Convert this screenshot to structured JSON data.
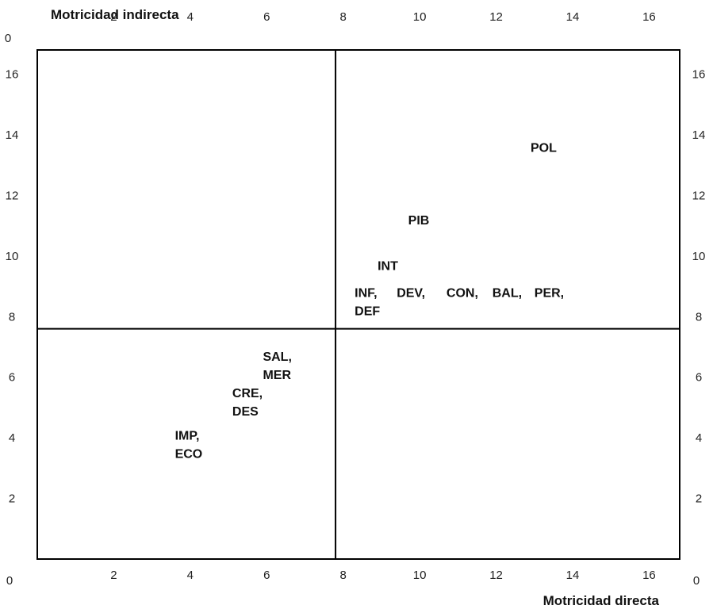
{
  "chart_data": {
    "type": "scatter",
    "title": "",
    "xlabel": "Motricidad directa",
    "ylabel": "Motricidad indirecta",
    "xlim": [
      0,
      16.8
    ],
    "ylim": [
      0,
      16.8
    ],
    "x_ticks": [
      2,
      4,
      6,
      8,
      10,
      12,
      14,
      16
    ],
    "y_ticks": [
      2,
      4,
      6,
      8,
      10,
      12,
      14,
      16
    ],
    "origin_label": "0",
    "divider_x": 7.8,
    "divider_y": 7.6,
    "grid": false,
    "points": [
      {
        "label": "POL",
        "x": 12.9,
        "y": 13.6
      },
      {
        "label": "PIB",
        "x": 9.7,
        "y": 11.2
      },
      {
        "label": "INT",
        "x": 8.9,
        "y": 9.7
      },
      {
        "label": "INF,",
        "x": 8.3,
        "y": 8.8
      },
      {
        "label": "DEV,",
        "x": 9.4,
        "y": 8.8
      },
      {
        "label": "CON,",
        "x": 10.7,
        "y": 8.8
      },
      {
        "label": "BAL,",
        "x": 11.9,
        "y": 8.8
      },
      {
        "label": "PER,",
        "x": 13.0,
        "y": 8.8
      },
      {
        "label": "DEF",
        "x": 8.3,
        "y": 8.2
      },
      {
        "label": "SAL,",
        "x": 5.9,
        "y": 6.7
      },
      {
        "label": "MER",
        "x": 5.9,
        "y": 6.1
      },
      {
        "label": "CRE,",
        "x": 5.1,
        "y": 5.5
      },
      {
        "label": "DES",
        "x": 5.1,
        "y": 4.9
      },
      {
        "label": "IMP,",
        "x": 3.6,
        "y": 4.1
      },
      {
        "label": "ECO",
        "x": 3.6,
        "y": 3.5
      }
    ]
  }
}
